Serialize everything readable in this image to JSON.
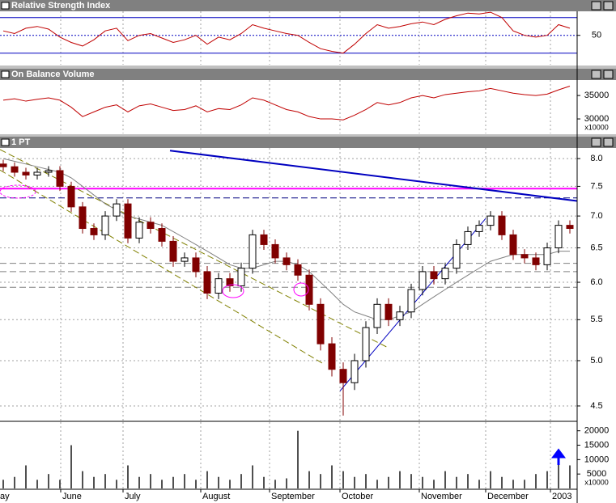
{
  "chart_data": [
    {
      "type": "line",
      "title": "Relative Strength Index",
      "x": [
        1,
        4.5,
        8,
        11.5,
        15,
        18.5,
        22,
        25.5,
        29,
        32.5,
        36,
        39.5,
        43,
        46.5,
        50,
        53.5,
        57,
        60.5,
        64,
        67.5,
        71,
        74.5,
        78,
        81.5,
        85,
        88.5,
        92,
        95.5,
        99,
        102.5,
        106,
        109.5,
        113,
        116.5,
        120,
        123.5,
        127,
        130.5,
        134,
        137.5,
        141,
        144.5,
        148,
        151.5,
        155,
        158.5,
        162,
        165.5,
        169,
        172.5,
        176
      ],
      "xlim": [
        0,
        178.25
      ],
      "series": [
        {
          "color": "#c00000",
          "values": [
            55,
            52,
            58,
            60,
            57,
            48,
            42,
            38,
            45,
            55,
            58,
            44,
            50,
            52,
            47,
            42,
            45,
            50,
            40,
            48,
            45,
            52,
            62,
            58,
            55,
            52,
            50,
            42,
            35,
            32,
            30,
            40,
            52,
            62,
            58,
            60,
            63,
            65,
            62,
            68,
            72,
            75,
            74,
            76,
            70,
            55,
            50,
            48,
            50,
            62,
            58
          ]
        }
      ],
      "ylim": [
        17,
        77
      ],
      "yticks": [
        50
      ],
      "reference_lines": [
        {
          "value": 70,
          "color": "#0000c0",
          "style": "solid"
        },
        {
          "value": 50,
          "color": "#0000c0",
          "style": "dotted"
        },
        {
          "value": 30,
          "color": "#0000c0",
          "style": "solid"
        }
      ]
    },
    {
      "type": "line",
      "title": "On Balance Volume",
      "x": [
        1,
        4.5,
        8,
        11.5,
        15,
        18.5,
        22,
        25.5,
        29,
        32.5,
        36,
        39.5,
        43,
        46.5,
        50,
        53.5,
        57,
        60.5,
        64,
        67.5,
        71,
        74.5,
        78,
        81.5,
        85,
        88.5,
        92,
        95.5,
        99,
        102.5,
        106,
        109.5,
        113,
        116.5,
        120,
        123.5,
        127,
        130.5,
        134,
        137.5,
        141,
        144.5,
        148,
        151.5,
        155,
        158.5,
        162,
        165.5,
        169,
        172.5,
        176
      ],
      "xlim": [
        0,
        178.25
      ],
      "series": [
        {
          "color": "#c00000",
          "values": [
            34000,
            34300,
            33800,
            34200,
            34500,
            34000,
            32500,
            30500,
            31500,
            32500,
            33000,
            31500,
            32800,
            33200,
            32500,
            31800,
            32000,
            32800,
            31500,
            32200,
            32000,
            33000,
            34500,
            34000,
            33000,
            32000,
            31500,
            30500,
            30000,
            30000,
            29800,
            30800,
            32000,
            33500,
            33000,
            33500,
            34500,
            35000,
            34500,
            35200,
            35500,
            35800,
            36000,
            36500,
            36000,
            35500,
            35200,
            35000,
            35300,
            36200,
            37000
          ]
        }
      ],
      "ylim": [
        26900,
        38300
      ],
      "yticks": [
        30000,
        35000
      ],
      "y_unit_label": "x10000"
    },
    {
      "type": "candlestick",
      "title": "1 PT",
      "x": [
        1,
        4.5,
        8,
        11.5,
        15,
        18.5,
        22,
        25.5,
        29,
        32.5,
        36,
        39.5,
        43,
        46.5,
        50,
        53.5,
        57,
        60.5,
        64,
        67.5,
        71,
        74.5,
        78,
        81.5,
        85,
        88.5,
        92,
        95.5,
        99,
        102.5,
        106,
        109.5,
        113,
        116.5,
        120,
        123.5,
        127,
        130.5,
        134,
        137.5,
        141,
        144.5,
        148,
        151.5,
        155,
        158.5,
        162,
        165.5,
        169,
        172.5,
        176
      ],
      "xlim": [
        0,
        178.25
      ],
      "open": [
        7.9,
        7.85,
        7.75,
        7.7,
        7.75,
        7.78,
        7.5,
        7.15,
        6.8,
        6.7,
        7.0,
        7.2,
        6.65,
        6.9,
        6.8,
        6.6,
        6.3,
        6.35,
        6.15,
        5.85,
        6.05,
        5.95,
        6.2,
        6.7,
        6.55,
        6.35,
        6.25,
        6.1,
        5.7,
        5.2,
        4.9,
        4.75,
        5.0,
        5.4,
        5.7,
        5.5,
        5.6,
        5.9,
        6.15,
        6.05,
        6.2,
        6.55,
        6.75,
        6.85,
        7.0,
        6.7,
        6.4,
        6.35,
        6.25,
        6.5,
        6.85
      ],
      "high": [
        7.98,
        7.93,
        7.83,
        7.83,
        7.86,
        7.86,
        7.58,
        7.23,
        6.88,
        7.08,
        7.28,
        7.28,
        6.98,
        6.98,
        6.88,
        6.68,
        6.43,
        6.43,
        6.23,
        6.13,
        6.13,
        6.28,
        6.78,
        6.78,
        6.63,
        6.43,
        6.33,
        6.18,
        5.78,
        5.28,
        4.98,
        5.08,
        5.48,
        5.78,
        5.78,
        5.68,
        5.98,
        6.23,
        6.23,
        6.28,
        6.63,
        6.83,
        6.93,
        7.08,
        7.08,
        6.78,
        6.48,
        6.43,
        6.58,
        6.93,
        6.93
      ],
      "low": [
        7.77,
        7.67,
        7.62,
        7.62,
        7.67,
        7.42,
        7.07,
        6.72,
        6.62,
        6.62,
        6.92,
        6.57,
        6.57,
        6.72,
        6.52,
        6.22,
        6.22,
        6.07,
        5.77,
        5.77,
        5.87,
        5.87,
        6.12,
        6.47,
        6.27,
        6.17,
        6.02,
        5.62,
        5.12,
        4.82,
        4.4,
        4.67,
        4.92,
        5.32,
        5.42,
        5.42,
        5.52,
        5.82,
        5.97,
        5.97,
        6.12,
        6.47,
        6.67,
        6.77,
        6.62,
        6.32,
        6.27,
        6.17,
        6.17,
        6.42,
        6.72
      ],
      "close": [
        7.85,
        7.75,
        7.7,
        7.75,
        7.78,
        7.5,
        7.15,
        6.8,
        6.7,
        7.0,
        7.2,
        6.65,
        6.9,
        6.8,
        6.6,
        6.3,
        6.35,
        6.15,
        5.85,
        6.05,
        5.95,
        6.2,
        6.7,
        6.55,
        6.35,
        6.25,
        6.1,
        5.7,
        5.2,
        4.9,
        4.75,
        5.0,
        5.4,
        5.7,
        5.5,
        5.6,
        5.9,
        6.15,
        6.05,
        6.2,
        6.55,
        6.75,
        6.85,
        7.0,
        6.7,
        6.4,
        6.35,
        6.25,
        6.5,
        6.85,
        6.8
      ],
      "up_color": "#ffffff",
      "down_color": "#800000",
      "series": [
        {
          "color": "#808080",
          "values": [
            8.0,
            7.95,
            7.9,
            7.85,
            7.8,
            7.75,
            7.65,
            7.5,
            7.35,
            7.2,
            7.1,
            7.0,
            6.95,
            6.9,
            6.85,
            6.75,
            6.65,
            6.55,
            6.45,
            6.35,
            6.25,
            6.2,
            6.2,
            6.25,
            6.3,
            6.3,
            6.25,
            6.15,
            6.0,
            5.85,
            5.7,
            5.6,
            5.55,
            5.5,
            5.5,
            5.55,
            5.6,
            5.7,
            5.8,
            5.9,
            6.0,
            6.1,
            6.2,
            6.3,
            6.35,
            6.4,
            6.4,
            6.4,
            6.4,
            6.45,
            6.45
          ]
        }
      ],
      "log_scale": true,
      "grid": true,
      "ylim": [
        4.35,
        8.2
      ],
      "yticks": [
        4.5,
        {
          "value": 5,
          "label": "5.0"
        },
        5.5,
        {
          "value": 6,
          "label": "6.0"
        },
        6.5,
        {
          "value": 7,
          "label": "7.0"
        },
        7.5,
        {
          "value": 8,
          "label": "8.0"
        }
      ],
      "trendlines": [
        {
          "x": [
            52.5,
            178.25
          ],
          "values": [
            8.15,
            7.25
          ],
          "color": "#0000c0",
          "style": "solid"
        },
        {
          "x": [
            105,
            150
          ],
          "values": [
            4.66,
            6.96
          ],
          "color": "#0000c0",
          "style": "solid"
        },
        {
          "x": [
            0,
            120
          ],
          "values": [
            8.17,
            5.15
          ],
          "color": "#808000",
          "style": "dashed"
        },
        {
          "x": [
            0,
            100
          ],
          "values": [
            7.79,
            4.96
          ],
          "color": "#808000",
          "style": "dashed"
        }
      ],
      "reference_lines": [
        {
          "value": 7.46,
          "color": "#ff00ff",
          "style": "solid"
        },
        {
          "value": 7.3,
          "color": "#000080",
          "style": "dashed"
        },
        {
          "value": 6.27,
          "color": "#808080",
          "style": "dashed"
        },
        {
          "value": 6.15,
          "color": "#808080",
          "style": "dashed"
        },
        {
          "value": 5.93,
          "color": "#808080",
          "style": "dashed"
        }
      ]
    },
    {
      "type": "bar",
      "x": [
        1,
        4.5,
        8,
        11.5,
        15,
        18.5,
        22,
        25.5,
        29,
        32.5,
        36,
        39.5,
        43,
        46.5,
        50,
        53.5,
        57,
        60.5,
        64,
        67.5,
        71,
        74.5,
        78,
        81.5,
        85,
        88.5,
        92,
        95.5,
        99,
        102.5,
        106,
        109.5,
        113,
        116.5,
        120,
        123.5,
        127,
        130.5,
        134,
        137.5,
        141,
        144.5,
        148,
        151.5,
        155,
        158.5,
        162,
        165.5,
        169,
        172.5,
        176
      ],
      "xlim": [
        0,
        178.25
      ],
      "values": [
        3000,
        4000,
        8000,
        3000,
        5000,
        3000,
        15000,
        6000,
        4000,
        5000,
        3000,
        8000,
        4000,
        5000,
        3000,
        4000,
        5000,
        3000,
        6000,
        4000,
        3000,
        5000,
        8000,
        4000,
        3000,
        3500,
        20000,
        6000,
        5000,
        8000,
        6000,
        4000,
        5000,
        3000,
        4000,
        6000,
        5000,
        4000,
        3000,
        6000,
        4000,
        5000,
        3000,
        6000,
        4000,
        3000,
        3000,
        5000,
        6000,
        9000,
        8000
      ],
      "color": "#505050",
      "ylim": [
        0,
        23000
      ],
      "yticks": [
        5000,
        10000,
        15000,
        20000
      ],
      "y_unit_label": "x10000",
      "xticks": [
        {
          "value": -0.5,
          "label": "ay"
        },
        {
          "value": 18.75,
          "label": "June"
        },
        {
          "value": 38,
          "label": "July"
        },
        {
          "value": 62,
          "label": "August"
        },
        {
          "value": 83.25,
          "label": "September"
        },
        {
          "value": 105,
          "label": "October"
        },
        {
          "value": 129.5,
          "label": "November"
        },
        {
          "value": 150,
          "label": "December"
        },
        {
          "value": 170,
          "label": "2003"
        }
      ]
    }
  ]
}
